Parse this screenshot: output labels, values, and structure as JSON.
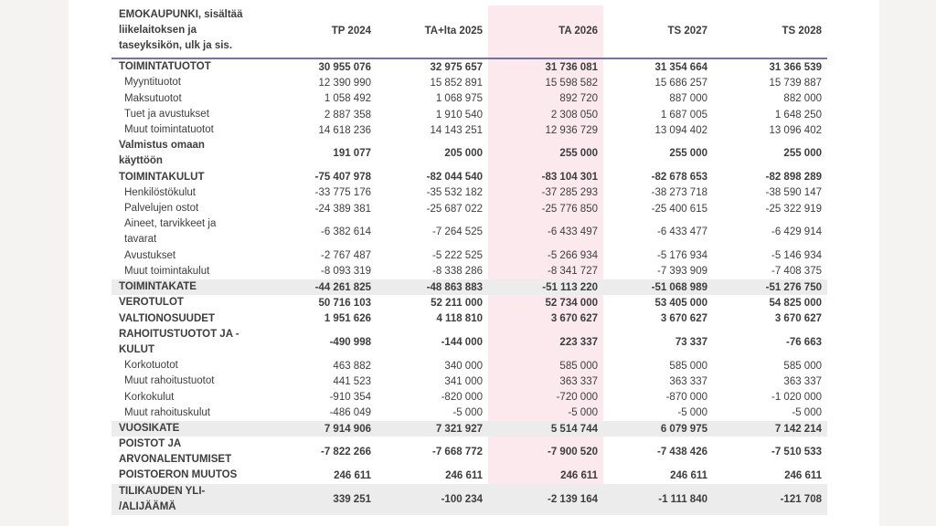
{
  "page": {
    "background": "#ffffff",
    "side_band_color": "#f4f3f1"
  },
  "table": {
    "title_lines": [
      "EMOKAUPUNKI, sisältää",
      "liikelaitoksen ja",
      "taseyksikön, ulk ja sis."
    ],
    "columns": [
      "TP 2024",
      "TA+lta 2025",
      "TA 2026",
      "TS 2027",
      "TS 2028"
    ],
    "highlight_column": "TA 2026",
    "highlight_column_index": 2,
    "colors": {
      "text": "#3d3d3d",
      "header_rule": "#7472aa",
      "highlight_fill": "#fbe9ee",
      "stripe_fill": "#ececec",
      "side_band": "#f4f3f1"
    },
    "rows": [
      {
        "label": [
          "TOIMINTATUOTOT"
        ],
        "bold": true,
        "band": false,
        "indent": false,
        "values": [
          "30 955 076",
          "32 975 657",
          "31 736 081",
          "31 354 664",
          "31 366 539"
        ]
      },
      {
        "label": [
          "Myyntituotot"
        ],
        "bold": false,
        "band": false,
        "indent": true,
        "values": [
          "12 390 990",
          "15 852 891",
          "15 598 582",
          "15 686 257",
          "15 739 887"
        ]
      },
      {
        "label": [
          "Maksutuotot"
        ],
        "bold": false,
        "band": false,
        "indent": true,
        "values": [
          "1 058 492",
          "1 068 975",
          "892 720",
          "887 000",
          "882 000"
        ]
      },
      {
        "label": [
          "Tuet ja avustukset"
        ],
        "bold": false,
        "band": false,
        "indent": true,
        "values": [
          "2 887 358",
          "1 910 540",
          "2 308 050",
          "1 687 005",
          "1 648 250"
        ]
      },
      {
        "label": [
          "Muut toimintatuotot"
        ],
        "bold": false,
        "band": false,
        "indent": true,
        "values": [
          "14 618 236",
          "14 143 251",
          "12 936 729",
          "13 094 402",
          "13 096 402"
        ]
      },
      {
        "label": [
          "Valmistus omaan",
          "käyttöön"
        ],
        "bold": true,
        "band": false,
        "indent": false,
        "values": [
          "191 077",
          "205 000",
          "255 000",
          "255 000",
          "255 000"
        ]
      },
      {
        "label": [
          "TOIMINTAKULUT"
        ],
        "bold": true,
        "band": false,
        "indent": false,
        "values": [
          "-75 407 978",
          "-82 044 540",
          "-83 104 301",
          "-82 678 653",
          "-82 898 289"
        ]
      },
      {
        "label": [
          "Henkilöstökulut"
        ],
        "bold": false,
        "band": false,
        "indent": true,
        "values": [
          "-33 775 176",
          "-35 532 182",
          "-37 285 293",
          "-38 273 718",
          "-38 590 147"
        ]
      },
      {
        "label": [
          "Palvelujen ostot"
        ],
        "bold": false,
        "band": false,
        "indent": true,
        "values": [
          "-24 389 381",
          "-25 687 022",
          "-25 776 850",
          "-25 400 615",
          "-25 322 919"
        ]
      },
      {
        "label": [
          "Aineet, tarvikkeet ja",
          "tavarat"
        ],
        "bold": false,
        "band": false,
        "indent": true,
        "values": [
          "-6 382 614",
          "-7 264 525",
          "-6 433 497",
          "-6 433 477",
          "-6 429 914"
        ]
      },
      {
        "label": [
          "Avustukset"
        ],
        "bold": false,
        "band": false,
        "indent": true,
        "values": [
          "-2 767 487",
          "-5 222 525",
          "-5 266 934",
          "-5 176 934",
          "-5 146 934"
        ]
      },
      {
        "label": [
          "Muut toimintakulut"
        ],
        "bold": false,
        "band": false,
        "indent": true,
        "values": [
          "-8 093 319",
          "-8 338 286",
          "-8 341 727",
          "-7 393 909",
          "-7 408 375"
        ]
      },
      {
        "label": [
          "TOIMINTAKATE"
        ],
        "bold": true,
        "band": true,
        "indent": false,
        "values": [
          "-44 261 825",
          "-48 863 883",
          "-51 113 220",
          "-51 068 989",
          "-51 276 750"
        ]
      },
      {
        "label": [
          "VEROTULOT"
        ],
        "bold": true,
        "band": false,
        "indent": false,
        "values": [
          "50 716 103",
          "52 211 000",
          "52 734 000",
          "53 405 000",
          "54 825 000"
        ]
      },
      {
        "label": [
          "VALTIONOSUUDET"
        ],
        "bold": true,
        "band": false,
        "indent": false,
        "values": [
          "1 951 626",
          "4 118 810",
          "3 670 627",
          "3 670 627",
          "3 670 627"
        ]
      },
      {
        "label": [
          "RAHOITUSTUOTOT JA -",
          "KULUT"
        ],
        "bold": true,
        "band": false,
        "indent": false,
        "values": [
          "-490 998",
          "-144 000",
          "223 337",
          "73 337",
          "-76 663"
        ]
      },
      {
        "label": [
          "Korkotuotot"
        ],
        "bold": false,
        "band": false,
        "indent": true,
        "values": [
          "463 882",
          "340 000",
          "585 000",
          "585 000",
          "585 000"
        ]
      },
      {
        "label": [
          "Muut rahoitustuotot"
        ],
        "bold": false,
        "band": false,
        "indent": true,
        "values": [
          "441 523",
          "341 000",
          "363 337",
          "363 337",
          "363 337"
        ]
      },
      {
        "label": [
          "Korkokulut"
        ],
        "bold": false,
        "band": false,
        "indent": true,
        "values": [
          "-910 354",
          "-820 000",
          "-720 000",
          "-870 000",
          "-1 020 000"
        ]
      },
      {
        "label": [
          "Muut rahoituskulut"
        ],
        "bold": false,
        "band": false,
        "indent": true,
        "values": [
          "-486 049",
          "-5 000",
          "-5 000",
          "-5 000",
          "-5 000"
        ]
      },
      {
        "label": [
          "VUOSIKATE"
        ],
        "bold": true,
        "band": true,
        "indent": false,
        "values": [
          "7 914 906",
          "7 321 927",
          "5 514 744",
          "6 079 975",
          "7 142 214"
        ]
      },
      {
        "label": [
          "POISTOT JA",
          "ARVONALENTUMISET"
        ],
        "bold": true,
        "band": false,
        "indent": false,
        "values": [
          "-7 822 266",
          "-7 668 772",
          "-7 900 520",
          "-7 438 426",
          "-7 510 533"
        ]
      },
      {
        "label": [
          "POISTOERON MUUTOS"
        ],
        "bold": true,
        "band": false,
        "indent": false,
        "values": [
          "246 611",
          "246 611",
          "246 611",
          "246 611",
          "246 611"
        ]
      },
      {
        "label": [
          "TILIKAUDEN YLI-",
          "/ALIJÄÄMÄ"
        ],
        "bold": true,
        "band": true,
        "indent": false,
        "values": [
          "339 251",
          "-100 234",
          "-2 139 164",
          "-1 111 840",
          "-121 708"
        ]
      }
    ]
  }
}
